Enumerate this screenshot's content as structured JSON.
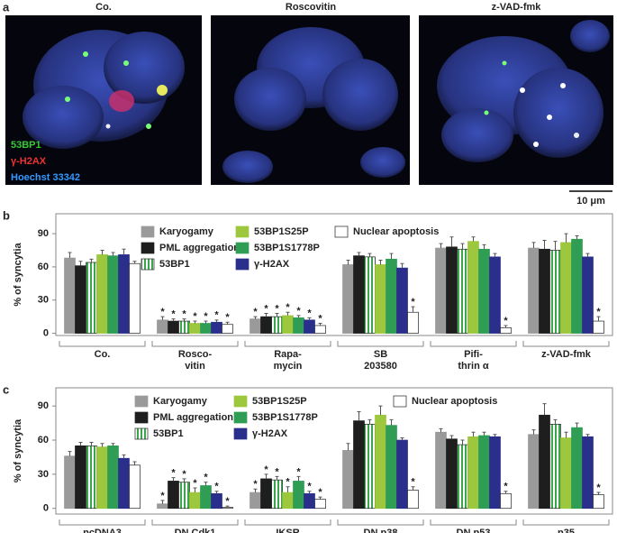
{
  "panel_a": {
    "label": "a",
    "titles": [
      "Co.",
      "Roscovitin",
      "z-VAD-fmk"
    ],
    "legend": [
      "53BP1",
      "γ-H2AX",
      "Hoechst 33342"
    ],
    "scale_bar": "10 μm"
  },
  "chart_data": [
    {
      "type": "bar",
      "label": "b",
      "ylabel": "% of syncytia",
      "ylim": [
        -2,
        108
      ],
      "yticks": [
        0,
        30,
        60,
        90
      ],
      "star": "*",
      "categories": [
        "Co.",
        "Rosco-\nvitin",
        "Rapa-\nmycin",
        "SB\n203580",
        "Pifi-\nthrin α",
        "z-VAD-fmk"
      ],
      "series": [
        {
          "name": "Karyogamy",
          "color": "#9a9a9a",
          "values": [
            68,
            12,
            13,
            62,
            77,
            77
          ],
          "errors": [
            5,
            3,
            2,
            4,
            4,
            5
          ],
          "stars": [
            false,
            true,
            true,
            false,
            false,
            false
          ]
        },
        {
          "name": "PML aggregation",
          "color": "#1e1e1e",
          "values": [
            61,
            11,
            15,
            70,
            78,
            76
          ],
          "errors": [
            4,
            2,
            3,
            3,
            9,
            8
          ],
          "stars": [
            false,
            true,
            true,
            false,
            false,
            false
          ]
        },
        {
          "name": "53BP1",
          "color": "#3aa64c",
          "pattern": "stripes",
          "values": [
            64,
            11,
            15,
            69,
            76,
            75
          ],
          "errors": [
            3,
            2,
            3,
            3,
            5,
            8
          ],
          "stars": [
            false,
            true,
            true,
            false,
            false,
            false
          ]
        },
        {
          "name": "53BP1S25P",
          "color": "#9dc83d",
          "values": [
            71,
            9,
            16,
            62,
            83,
            82
          ],
          "errors": [
            4,
            2,
            3,
            4,
            4,
            8
          ],
          "stars": [
            false,
            true,
            true,
            false,
            false,
            false
          ]
        },
        {
          "name": "53BP1S1778P",
          "color": "#2f9e54",
          "values": [
            70,
            9,
            14,
            67,
            76,
            85
          ],
          "errors": [
            3,
            2,
            2,
            5,
            4,
            3
          ],
          "stars": [
            false,
            true,
            true,
            false,
            false,
            false
          ]
        },
        {
          "name": "γ-H2AX",
          "color": "#2b2f8c",
          "values": [
            71,
            10,
            12,
            59,
            69,
            69
          ],
          "errors": [
            5,
            2,
            2,
            4,
            3,
            3
          ],
          "stars": [
            false,
            true,
            true,
            false,
            false,
            false
          ]
        },
        {
          "name": "Nuclear apoptosis",
          "color": "#ffffff",
          "values": [
            63,
            8,
            7,
            19,
            5,
            11
          ],
          "errors": [
            2,
            2,
            2,
            5,
            2,
            4
          ],
          "stars": [
            false,
            true,
            true,
            true,
            true,
            true
          ]
        }
      ]
    },
    {
      "type": "bar",
      "label": "c",
      "ylabel": "% of syncytia",
      "ylim": [
        -5,
        106
      ],
      "yticks": [
        0,
        30,
        60,
        90
      ],
      "star": "*",
      "categories": [
        "pcDNA3",
        "DN Cdk1",
        "IKSR",
        "DN p38",
        "DN p53",
        "p35"
      ],
      "series": [
        {
          "name": "Karyogamy",
          "color": "#9a9a9a",
          "values": [
            46,
            4,
            14,
            51,
            67,
            65
          ],
          "errors": [
            4,
            3,
            3,
            6,
            3,
            4
          ],
          "stars": [
            false,
            true,
            true,
            false,
            false,
            false
          ]
        },
        {
          "name": "PML aggregation",
          "color": "#1e1e1e",
          "values": [
            55,
            24,
            26,
            77,
            61,
            82
          ],
          "errors": [
            3,
            3,
            4,
            8,
            3,
            10
          ],
          "stars": [
            false,
            true,
            true,
            false,
            false,
            false
          ]
        },
        {
          "name": "53BP1",
          "color": "#3aa64c",
          "pattern": "stripes",
          "values": [
            55,
            23,
            25,
            74,
            56,
            74
          ],
          "errors": [
            3,
            3,
            3,
            4,
            4,
            4
          ],
          "stars": [
            false,
            true,
            true,
            false,
            false,
            false
          ]
        },
        {
          "name": "53BP1S25P",
          "color": "#9dc83d",
          "values": [
            54,
            14,
            14,
            82,
            63,
            62
          ],
          "errors": [
            3,
            4,
            5,
            8,
            4,
            5
          ],
          "stars": [
            false,
            true,
            true,
            false,
            false,
            false
          ]
        },
        {
          "name": "53BP1S1778P",
          "color": "#2f9e54",
          "values": [
            55,
            20,
            24,
            73,
            64,
            71
          ],
          "errors": [
            2,
            3,
            4,
            5,
            3,
            4
          ],
          "stars": [
            false,
            true,
            true,
            false,
            false,
            false
          ]
        },
        {
          "name": "γ-H2AX",
          "color": "#2b2f8c",
          "values": [
            44,
            13,
            13,
            60,
            63,
            63
          ],
          "errors": [
            3,
            2,
            2,
            2,
            2,
            2
          ],
          "stars": [
            false,
            true,
            true,
            false,
            false,
            false
          ]
        },
        {
          "name": "Nuclear apoptosis",
          "color": "#ffffff",
          "values": [
            38,
            1,
            8,
            16,
            13,
            12
          ],
          "errors": [
            3,
            1,
            2,
            3,
            2,
            2
          ],
          "stars": [
            false,
            true,
            true,
            true,
            true,
            true
          ]
        }
      ]
    }
  ]
}
